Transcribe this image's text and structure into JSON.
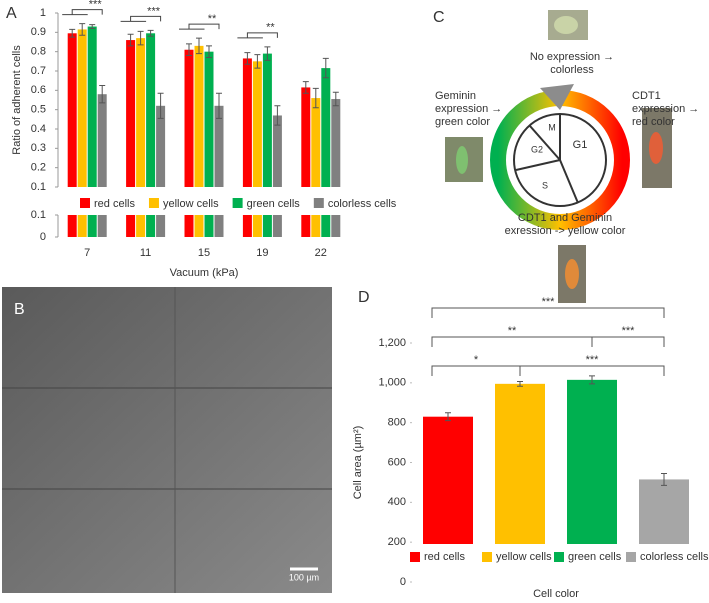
{
  "chart_data": [
    {
      "type": "bar",
      "panel_label": "A",
      "ylabel": "Ratio of adherent cells",
      "xlabel": "Vacuum (kPa)",
      "categories": [
        "7",
        "11",
        "15",
        "19",
        "22"
      ],
      "series": [
        {
          "name": "red cells",
          "color": "#ff0000",
          "values": [
            0.895,
            0.86,
            0.81,
            0.765,
            0.615
          ],
          "errors": [
            0.02,
            0.03,
            0.03,
            0.03,
            0.03
          ]
        },
        {
          "name": "yellow cells",
          "color": "#ffc000",
          "values": [
            0.915,
            0.87,
            0.83,
            0.75,
            0.56
          ],
          "errors": [
            0.03,
            0.035,
            0.04,
            0.035,
            0.05
          ]
        },
        {
          "name": "green cells",
          "color": "#00b050",
          "values": [
            0.93,
            0.895,
            0.8,
            0.79,
            0.715
          ],
          "errors": [
            0.01,
            0.015,
            0.03,
            0.035,
            0.05
          ]
        },
        {
          "name": "colorless cells",
          "color": "#808080",
          "values": [
            0.58,
            0.52,
            0.52,
            0.47,
            0.555
          ],
          "errors": [
            0.045,
            0.065,
            0.065,
            0.05,
            0.035
          ]
        }
      ],
      "ylim": [
        0.1,
        1
      ],
      "yticks": [
        0.1,
        0.2,
        0.3,
        0.4,
        0.5,
        0.6,
        0.7,
        0.8,
        0.9,
        1
      ],
      "broken_axis_ticks": [
        0,
        0.1
      ],
      "significance": [
        {
          "category": 0,
          "label": "***"
        },
        {
          "category": 1,
          "label": "***"
        },
        {
          "category": 2,
          "label": "**"
        },
        {
          "category": 3,
          "label": "**"
        }
      ]
    },
    {
      "type": "bar",
      "panel_label": "D",
      "ylabel": "Cell area (µm²)",
      "xlabel": "Cell color",
      "categories": [
        "red cells",
        "yellow cells",
        "green cells",
        "colorless cells"
      ],
      "colors": [
        "#ff0000",
        "#ffc000",
        "#00b050",
        "#a6a6a6"
      ],
      "values": [
        830,
        995,
        1015,
        515
      ],
      "errors": [
        20,
        12,
        20,
        30
      ],
      "ylim": [
        0,
        1200
      ],
      "yticks": [
        0,
        200,
        400,
        600,
        800,
        {
          "value": 1000,
          "label": "1,000"
        },
        {
          "value": 1200,
          "label": "1,200"
        }
      ],
      "significance": [
        {
          "from": 0,
          "to": 3,
          "label": "***"
        },
        {
          "from": 0,
          "to": 2,
          "label": "**"
        },
        {
          "from": 2,
          "to": 3,
          "label": "***"
        },
        {
          "from": 0,
          "to": 1,
          "label": "*"
        },
        {
          "from": 1,
          "to": 3,
          "label": "***"
        }
      ]
    }
  ],
  "micrograph": {
    "label": "B",
    "scale_bar": "100 µm"
  },
  "diagram": {
    "label": "C",
    "phases": [
      "G1",
      "S",
      "G2",
      "M"
    ],
    "top": [
      "No expression →",
      "colorless"
    ],
    "left": [
      "Geminin",
      "expression →",
      "green color"
    ],
    "right": [
      "CDT1",
      "expression →",
      "red color"
    ],
    "bottom": [
      "CDT1 and Geminin",
      "exression -> yellow color"
    ]
  }
}
